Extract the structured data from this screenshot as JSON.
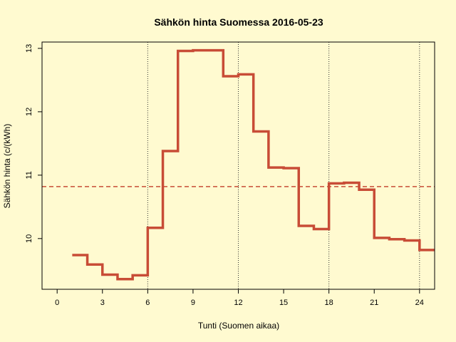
{
  "chart_data": {
    "type": "line",
    "step": "post",
    "title": "Sähkön hinta Suomessa 2016-05-23",
    "xlabel": "Tunti (Suomen aikaa)",
    "ylabel": "Sähkön hinta (c/(kWh)",
    "xlim": [
      -1,
      25
    ],
    "ylim": [
      9.2,
      13.1
    ],
    "xticks": [
      0,
      3,
      6,
      9,
      12,
      15,
      18,
      21,
      24
    ],
    "yticks": [
      10,
      11,
      12,
      13
    ],
    "vlines": [
      6,
      12,
      18,
      24
    ],
    "mean_line": 10.82,
    "series": [
      {
        "x": [
          1,
          2,
          3,
          4,
          5,
          6,
          7,
          8,
          9,
          10,
          11,
          12,
          13,
          14,
          15,
          16,
          17,
          18,
          19,
          20,
          21,
          22,
          23,
          24
        ],
        "values": [
          9.74,
          9.59,
          9.43,
          9.36,
          9.42,
          10.17,
          11.38,
          12.96,
          12.97,
          12.97,
          12.56,
          12.59,
          11.69,
          11.12,
          11.11,
          10.2,
          10.15,
          10.87,
          10.88,
          10.77,
          10.01,
          9.99,
          9.97,
          9.82
        ],
        "color": "#c84c36"
      }
    ],
    "mean_color": "#c84c36",
    "grid": false,
    "background": "#fffad0"
  }
}
